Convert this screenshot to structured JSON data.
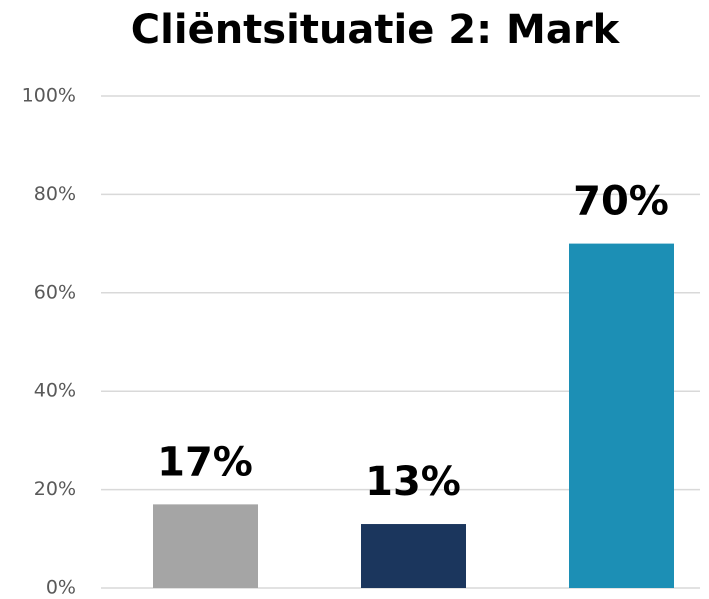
{
  "chart_data": {
    "type": "bar",
    "title": "Cliëntsituatie 2: Mark",
    "categories": [
      null,
      null,
      null
    ],
    "values": [
      17,
      13,
      70
    ],
    "value_labels": [
      "17%",
      "13%",
      "70%"
    ],
    "colors": [
      "#a5a5a5",
      "#1b365d",
      "#1c8fb5"
    ],
    "ylim": [
      0,
      100
    ],
    "yticks": [
      {
        "value": 0,
        "label": "0%"
      },
      {
        "value": 20,
        "label": "20%"
      },
      {
        "value": 40,
        "label": "40%"
      },
      {
        "value": 60,
        "label": "60%"
      },
      {
        "value": 80,
        "label": "80%"
      },
      {
        "value": 100,
        "label": "100%"
      }
    ],
    "grid": true
  }
}
